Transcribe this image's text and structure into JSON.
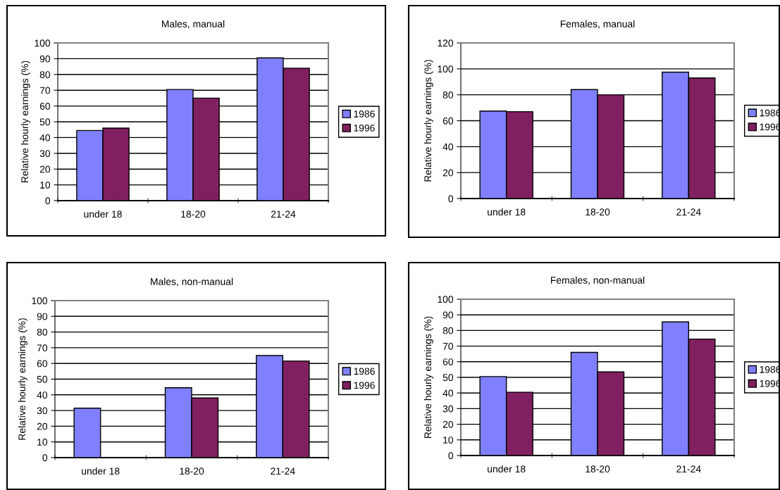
{
  "chart_data": [
    {
      "type": "bar",
      "title": "Males, manual",
      "ylabel": "Relative hourly earnings (%)",
      "categories": [
        "under 18",
        "18-20",
        "21-24"
      ],
      "series": [
        {
          "name": "1986",
          "color": "#8080ff",
          "values": [
            44.5,
            70.5,
            90.5
          ]
        },
        {
          "name": "1996",
          "color": "#802060",
          "values": [
            46,
            65,
            84
          ]
        }
      ],
      "ylim": [
        0,
        100
      ],
      "yticks": [
        0,
        10,
        20,
        30,
        40,
        50,
        60,
        70,
        80,
        90,
        100
      ],
      "grid": "y",
      "legend": "right"
    },
    {
      "type": "bar",
      "title": "Females, manual",
      "ylabel": "Relative hourly earnings (%)",
      "categories": [
        "under 18",
        "18-20",
        "21-24"
      ],
      "series": [
        {
          "name": "1986",
          "color": "#8080ff",
          "values": [
            67.5,
            84,
            97.5
          ]
        },
        {
          "name": "1996",
          "color": "#802060",
          "values": [
            67,
            80,
            93
          ]
        }
      ],
      "ylim": [
        0,
        120
      ],
      "yticks": [
        0,
        20,
        40,
        60,
        80,
        100,
        120
      ],
      "grid": "y",
      "legend": "right"
    },
    {
      "type": "bar",
      "title": "Males, non-manual",
      "ylabel": "Relative hourly earnings (%)",
      "categories": [
        "under 18",
        "18-20",
        "21-24"
      ],
      "series": [
        {
          "name": "1986",
          "color": "#8080ff",
          "values": [
            31.5,
            44.5,
            65
          ]
        },
        {
          "name": "1996",
          "color": "#802060",
          "values": [
            null,
            38,
            61.5
          ]
        }
      ],
      "ylim": [
        0,
        100
      ],
      "yticks": [
        0,
        10,
        20,
        30,
        40,
        50,
        60,
        70,
        80,
        90,
        100
      ],
      "grid": "y",
      "legend": "right"
    },
    {
      "type": "bar",
      "title": "Females, non-manual",
      "ylabel": "Relative hourly earnings (%)",
      "categories": [
        "under 18",
        "18-20",
        "21-24"
      ],
      "series": [
        {
          "name": "1986",
          "color": "#8080ff",
          "values": [
            50.5,
            66,
            85.5
          ]
        },
        {
          "name": "1996",
          "color": "#802060",
          "values": [
            40.5,
            53.5,
            74.5
          ]
        }
      ],
      "ylim": [
        0,
        100
      ],
      "yticks": [
        0,
        10,
        20,
        30,
        40,
        50,
        60,
        70,
        80,
        90,
        100
      ],
      "grid": "y",
      "legend": "right"
    }
  ]
}
